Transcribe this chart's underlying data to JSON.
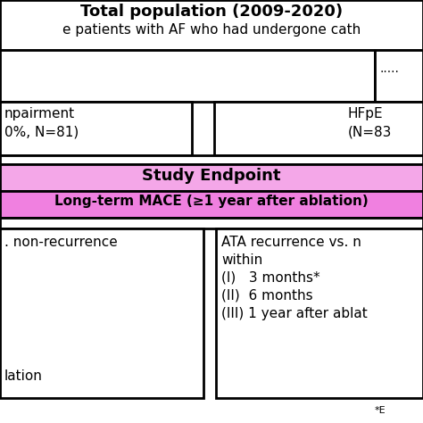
{
  "title_line1": "Total population (2009-2020)",
  "title_line2": "e patients with AF who had undergone cath",
  "bg_color": "#ffffff",
  "border_color": "#000000",
  "study_endpoint_bg": "#f4a7e8",
  "mace_bg": "#f080e0",
  "box1_text_line1": "npairment",
  "box1_text_line2": "0%, N=81)",
  "box2_text_line1": "HFpE",
  "box2_text_line2": "(N=83",
  "study_endpoint_text": "Study Endpoint",
  "mace_text": "Long-term MACE (≥1 year after ablation)",
  "box3_text_line1": ". non-recurrence",
  "box3_text_line2": "lation",
  "box4_text_line1": "ATA recurrence vs. n",
  "box4_text_line2": "within",
  "box4_text_line3": "(I)   3 months*",
  "box4_text_line4": "(II)  6 months",
  "box4_text_line5": "(III) 1 year after ablat",
  "footnote": "*E",
  "dotted_text": ".....",
  "lw": 2.0
}
